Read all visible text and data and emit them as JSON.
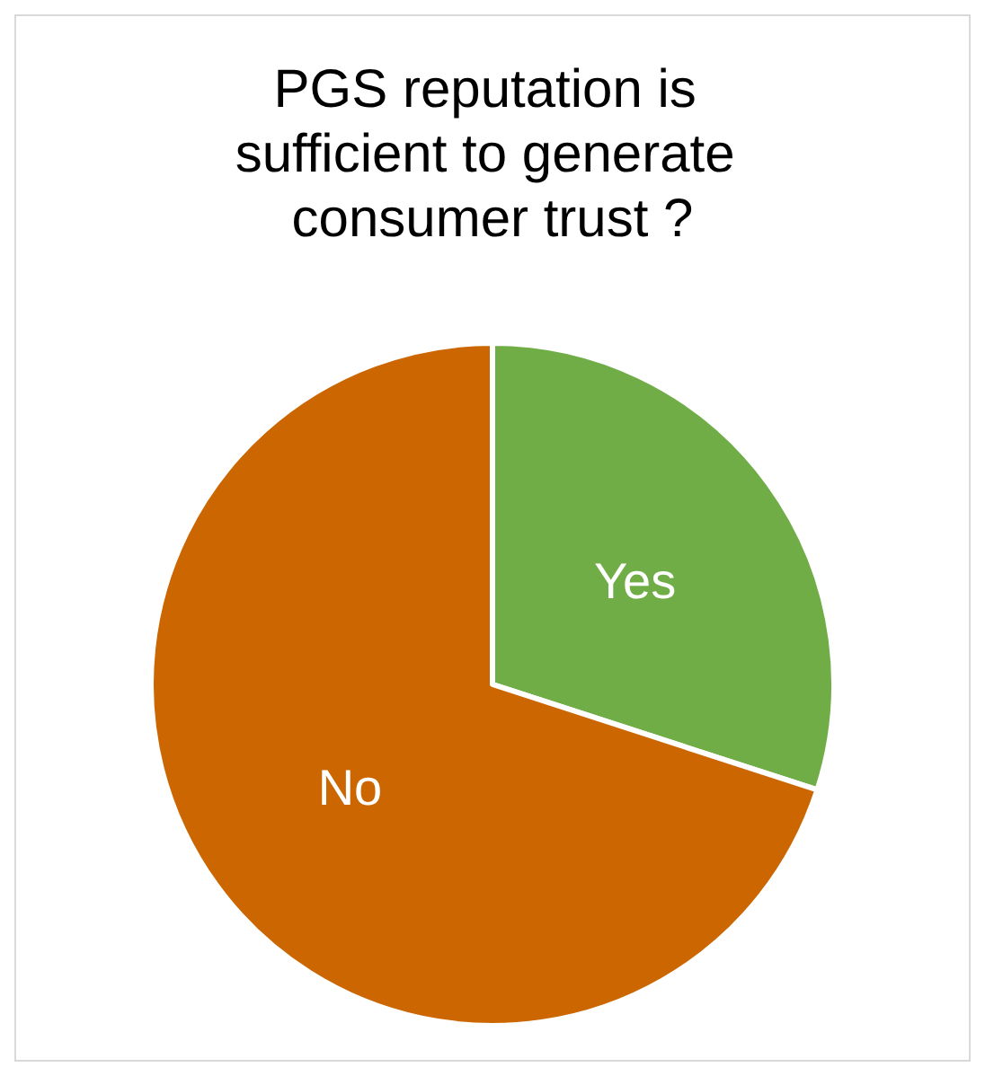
{
  "chart_data": {
    "type": "pie",
    "title": "PGS reputation is sufficient to generate consumer trust ?",
    "categories": [
      "Yes",
      "No"
    ],
    "values": [
      30,
      70
    ],
    "colors": [
      "#70ad47",
      "#cc6600"
    ],
    "legend": false
  }
}
